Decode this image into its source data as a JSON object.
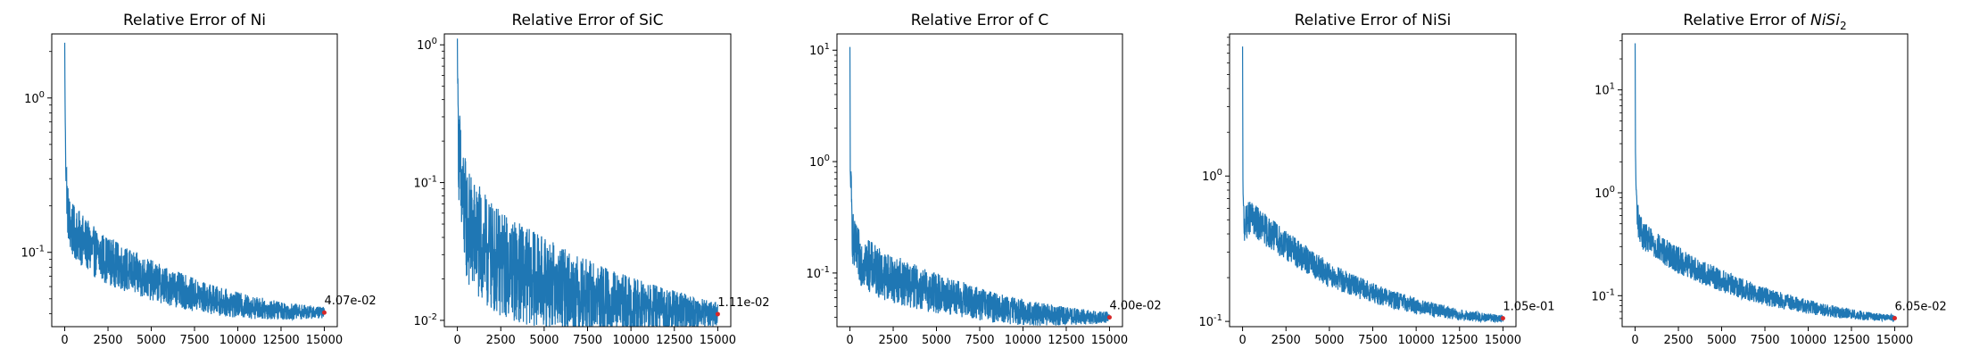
{
  "chart_data": [
    {
      "type": "line",
      "title": "Relative Error of Ni",
      "xlabel": "",
      "ylabel": "",
      "yscale": "log",
      "xlim": [
        -750,
        15750
      ],
      "ylim": [
        0.033,
        2.6
      ],
      "xticks": [
        0,
        2500,
        5000,
        7500,
        10000,
        12500,
        15000
      ],
      "xtick_labels": [
        "0",
        "2500",
        "5000",
        "7500",
        "10000",
        "12500",
        "15000"
      ],
      "yticks": [
        1,
        0.1
      ],
      "ytick_labels": [
        "10^0",
        "10^-1"
      ],
      "line_color": "#1f77b4",
      "marker_color": "#d62728",
      "noise": 0.18,
      "x": [
        0,
        20,
        50,
        100,
        150,
        250,
        400,
        700,
        1000,
        1500,
        2000,
        3000,
        4000,
        5000,
        6000,
        7000,
        8000,
        9000,
        10000,
        11000,
        12000,
        13000,
        14000,
        15000
      ],
      "y": [
        2.2,
        0.9,
        0.45,
        0.3,
        0.2,
        0.16,
        0.14,
        0.13,
        0.12,
        0.105,
        0.095,
        0.083,
        0.073,
        0.066,
        0.06,
        0.055,
        0.051,
        0.048,
        0.0455,
        0.0438,
        0.0425,
        0.0415,
        0.041,
        0.0407
      ],
      "final": {
        "x": 15000,
        "y": 0.0407,
        "label": "4.07e-02"
      }
    },
    {
      "type": "line",
      "title": "Relative Error of SiC",
      "xlabel": "",
      "ylabel": "",
      "yscale": "log",
      "xlim": [
        -750,
        15750
      ],
      "ylim": [
        0.009,
        1.2
      ],
      "xticks": [
        0,
        2500,
        5000,
        7500,
        10000,
        12500,
        15000
      ],
      "xtick_labels": [
        "0",
        "2500",
        "5000",
        "7500",
        "10000",
        "12500",
        "15000"
      ],
      "yticks": [
        1,
        0.1,
        0.01
      ],
      "ytick_labels": [
        "10^0",
        "10^-1",
        "10^-2"
      ],
      "line_color": "#1f77b4",
      "marker_color": "#d62728",
      "noise": 0.45,
      "x": [
        0,
        20,
        50,
        100,
        200,
        400,
        700,
        1000,
        1500,
        2000,
        3000,
        4000,
        5000,
        6000,
        7000,
        8000,
        9000,
        10000,
        11000,
        12000,
        13000,
        14000,
        15000
      ],
      "y": [
        1.0,
        0.6,
        0.3,
        0.17,
        0.09,
        0.06,
        0.045,
        0.04,
        0.033,
        0.028,
        0.024,
        0.021,
        0.019,
        0.017,
        0.0155,
        0.0145,
        0.0135,
        0.0128,
        0.0122,
        0.0118,
        0.0115,
        0.0113,
        0.0111
      ],
      "final": {
        "x": 15000,
        "y": 0.0111,
        "label": "1.11e-02"
      }
    },
    {
      "type": "line",
      "title": "Relative Error of C",
      "xlabel": "",
      "ylabel": "",
      "yscale": "log",
      "xlim": [
        -750,
        15750
      ],
      "ylim": [
        0.033,
        14
      ],
      "xticks": [
        0,
        2500,
        5000,
        7500,
        10000,
        12500,
        15000
      ],
      "xtick_labels": [
        "0",
        "2500",
        "5000",
        "7500",
        "10000",
        "12500",
        "15000"
      ],
      "yticks": [
        10,
        1,
        0.1
      ],
      "ytick_labels": [
        "10^1",
        "10^0",
        "10^-1"
      ],
      "line_color": "#1f77b4",
      "marker_color": "#d62728",
      "noise": 0.25,
      "x": [
        0,
        20,
        50,
        100,
        150,
        250,
        400,
        700,
        1000,
        1500,
        2000,
        3000,
        4000,
        5000,
        6000,
        7000,
        8000,
        9000,
        10000,
        11000,
        12000,
        13000,
        14000,
        15000
      ],
      "y": [
        10,
        0.8,
        0.6,
        0.35,
        0.22,
        0.17,
        0.15,
        0.13,
        0.12,
        0.105,
        0.095,
        0.083,
        0.073,
        0.066,
        0.06,
        0.055,
        0.05,
        0.047,
        0.0445,
        0.0428,
        0.0415,
        0.0407,
        0.0402,
        0.04
      ],
      "final": {
        "x": 15000,
        "y": 0.04,
        "label": "4.00e-02"
      }
    },
    {
      "type": "line",
      "title": "Relative Error of NiSi",
      "xlabel": "",
      "ylabel": "",
      "yscale": "log",
      "xlim": [
        -750,
        15750
      ],
      "ylim": [
        0.092,
        9.5
      ],
      "xticks": [
        0,
        2500,
        5000,
        7500,
        10000,
        12500,
        15000
      ],
      "xtick_labels": [
        "0",
        "2500",
        "5000",
        "7500",
        "10000",
        "12500",
        "15000"
      ],
      "yticks": [
        1,
        0.1
      ],
      "ytick_labels": [
        "10^0",
        "10^-1"
      ],
      "line_color": "#1f77b4",
      "marker_color": "#d62728",
      "noise": 0.12,
      "x": [
        0,
        20,
        50,
        100,
        200,
        400,
        600,
        1000,
        1500,
        2000,
        3000,
        4000,
        5000,
        6000,
        7000,
        8000,
        9000,
        10000,
        11000,
        12000,
        13000,
        14000,
        15000
      ],
      "y": [
        7.5,
        0.9,
        0.6,
        0.45,
        0.48,
        0.52,
        0.5,
        0.46,
        0.41,
        0.37,
        0.3,
        0.25,
        0.21,
        0.185,
        0.165,
        0.15,
        0.138,
        0.128,
        0.12,
        0.114,
        0.109,
        0.106,
        0.105
      ],
      "final": {
        "x": 15000,
        "y": 0.105,
        "label": "1.05e-01"
      }
    },
    {
      "type": "line",
      "title": "Relative Error of NiSi2",
      "title_parts": {
        "base": "Relative Error of ",
        "italic": "NiSi",
        "subscript": "2"
      },
      "xlabel": "",
      "ylabel": "",
      "yscale": "log",
      "xlim": [
        -750,
        15750
      ],
      "ylim": [
        0.05,
        35
      ],
      "xticks": [
        0,
        2500,
        5000,
        7500,
        10000,
        12500,
        15000
      ],
      "xtick_labels": [
        "0",
        "2500",
        "5000",
        "7500",
        "10000",
        "12500",
        "15000"
      ],
      "yticks": [
        10,
        1,
        0.1
      ],
      "ytick_labels": [
        "10^1",
        "10^0",
        "10^-1"
      ],
      "line_color": "#1f77b4",
      "marker_color": "#d62728",
      "noise": 0.15,
      "x": [
        0,
        20,
        50,
        100,
        200,
        400,
        700,
        1000,
        1500,
        2000,
        3000,
        4000,
        5000,
        6000,
        7000,
        8000,
        9000,
        10000,
        11000,
        12000,
        13000,
        14000,
        15000
      ],
      "y": [
        27,
        2.5,
        1.2,
        0.7,
        0.5,
        0.4,
        0.35,
        0.32,
        0.28,
        0.25,
        0.2,
        0.165,
        0.14,
        0.12,
        0.105,
        0.093,
        0.085,
        0.078,
        0.072,
        0.068,
        0.0645,
        0.062,
        0.0605
      ],
      "final": {
        "x": 15000,
        "y": 0.0605,
        "label": "6.05e-02"
      }
    }
  ]
}
